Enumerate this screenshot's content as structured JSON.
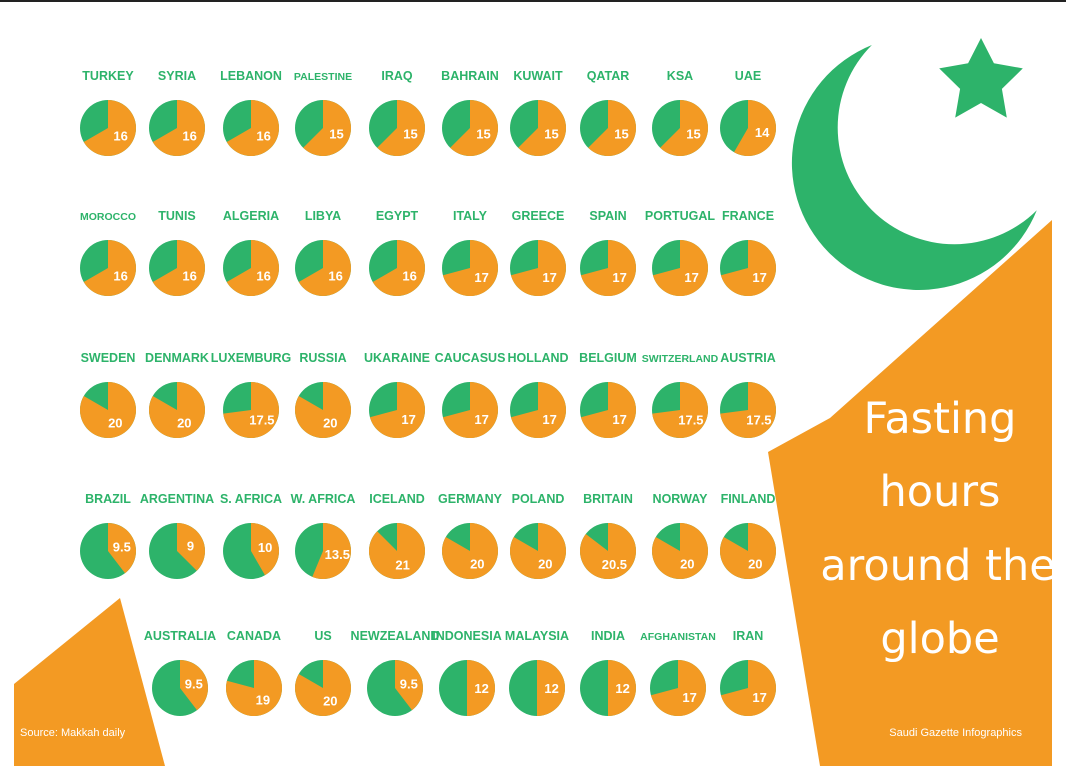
{
  "title_lines": [
    "Fasting",
    "hours",
    "around the",
    "globe"
  ],
  "source": "Source: Makkah daily",
  "credit": "Saudi Gazette Infographics",
  "colors": {
    "green": "#2db36a",
    "orange": "#f39a23",
    "text_green": "#2db36a"
  },
  "icons": [
    "crescent-icon",
    "star-icon"
  ],
  "chart_data": {
    "type": "pie",
    "title": "Fasting hours around the globe",
    "value_scale_max": 24,
    "rows": [
      [
        {
          "country": "TURKEY",
          "hours": 16
        },
        {
          "country": "SYRIA",
          "hours": 16
        },
        {
          "country": "LEBANON",
          "hours": 16
        },
        {
          "country": "PALESTINE",
          "hours": 15
        },
        {
          "country": "IRAQ",
          "hours": 15
        },
        {
          "country": "BAHRAIN",
          "hours": 15
        },
        {
          "country": "KUWAIT",
          "hours": 15
        },
        {
          "country": "QATAR",
          "hours": 15
        },
        {
          "country": "KSA",
          "hours": 15
        },
        {
          "country": "UAE",
          "hours": 14
        }
      ],
      [
        {
          "country": "MOROCCO",
          "hours": 16
        },
        {
          "country": "TUNIS",
          "hours": 16
        },
        {
          "country": "ALGERIA",
          "hours": 16
        },
        {
          "country": "LIBYA",
          "hours": 16
        },
        {
          "country": "EGYPT",
          "hours": 16
        },
        {
          "country": "ITALY",
          "hours": 17
        },
        {
          "country": "GREECE",
          "hours": 17
        },
        {
          "country": "SPAIN",
          "hours": 17
        },
        {
          "country": "PORTUGAL",
          "hours": 17
        },
        {
          "country": "FRANCE",
          "hours": 17
        }
      ],
      [
        {
          "country": "SWEDEN",
          "hours": 20
        },
        {
          "country": "DENMARK",
          "hours": 20
        },
        {
          "country": "LUXEMBURG",
          "hours": 17.5
        },
        {
          "country": "RUSSIA",
          "hours": 20
        },
        {
          "country": "UKARAINE",
          "hours": 17
        },
        {
          "country": "CAUCASUS",
          "hours": 17
        },
        {
          "country": "HOLLAND",
          "hours": 17
        },
        {
          "country": "BELGIUM",
          "hours": 17
        },
        {
          "country": "SWITZERLAND",
          "hours": 17.5
        },
        {
          "country": "AUSTRIA",
          "hours": 17.5
        }
      ],
      [
        {
          "country": "BRAZIL",
          "hours": 9.5
        },
        {
          "country": "ARGENTINA",
          "hours": 9
        },
        {
          "country": "S. AFRICA",
          "hours": 10
        },
        {
          "country": "W. AFRICA",
          "hours": 13.5
        },
        {
          "country": "ICELAND",
          "hours": 21
        },
        {
          "country": "GERMANY",
          "hours": 20
        },
        {
          "country": "POLAND",
          "hours": 20
        },
        {
          "country": "BRITAIN",
          "hours": 20.5
        },
        {
          "country": "NORWAY",
          "hours": 20
        },
        {
          "country": "FINLAND",
          "hours": 20
        }
      ],
      [
        {
          "country": "AUSTRALIA",
          "hours": 9.5
        },
        {
          "country": "CANADA",
          "hours": 19
        },
        {
          "country": "US",
          "hours": 20
        },
        {
          "country": "NEWZEALAND",
          "hours": 9.5
        },
        {
          "country": "INDONESIA",
          "hours": 12
        },
        {
          "country": "MALAYSIA",
          "hours": 12
        },
        {
          "country": "INDIA",
          "hours": 12
        },
        {
          "country": "AFGHANISTAN",
          "hours": 17
        },
        {
          "country": "IRAN",
          "hours": 17
        }
      ]
    ]
  }
}
